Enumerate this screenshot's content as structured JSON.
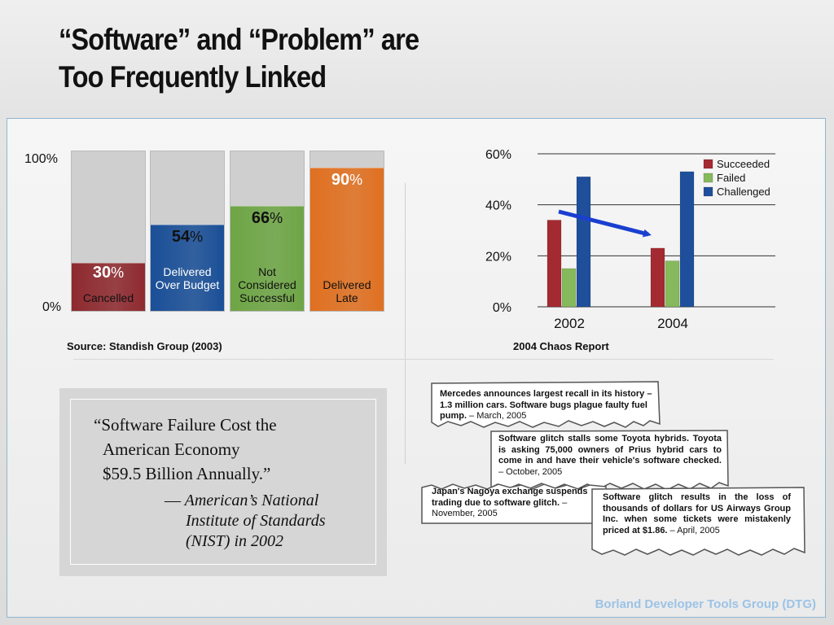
{
  "title": {
    "line1": "“Software” and “Problem” are",
    "line2": "Too Frequently Linked"
  },
  "standish": {
    "axis_top": "100%",
    "axis_bottom": "0%",
    "bars": [
      {
        "pct_num": "30",
        "pct_sign": "%",
        "label": "Cancelled",
        "value": 30,
        "color": "#8e2a2f"
      },
      {
        "pct_num": "54",
        "pct_sign": "%",
        "label": "Delivered Over Budget",
        "value": 54,
        "color": "#1a4f97"
      },
      {
        "pct_num": "66",
        "pct_sign": "%",
        "label": "Not Considered Successful",
        "value": 66,
        "color": "#6ea545"
      },
      {
        "pct_num": "90",
        "pct_sign": "%",
        "label": "Delivered Late",
        "value": 90,
        "color": "#e07020"
      }
    ],
    "source": "Source: Standish Group (2003)"
  },
  "chart_data": {
    "type": "bar",
    "categories": [
      "2002",
      "2004"
    ],
    "series": [
      {
        "name": "Succeeded",
        "values": [
          34,
          23
        ],
        "color": "#a42a31"
      },
      {
        "name": "Failed",
        "values": [
          15,
          18
        ],
        "color": "#86b95c"
      },
      {
        "name": "Challenged",
        "values": [
          51,
          53
        ],
        "color": "#1f4f9b"
      }
    ],
    "yticks": [
      "0%",
      "20%",
      "40%",
      "60%"
    ],
    "ylim": [
      0,
      60
    ],
    "grid": true,
    "legend": "top-right",
    "caption": "2004 Chaos Report"
  },
  "quote": {
    "line1": "“Software Failure Cost the",
    "line2": "American Economy",
    "line3": "$59.5 Billion Annually.”",
    "attr_dash": "—",
    "attr1": "American’s National",
    "attr2": "Institute of Standards",
    "attr3": "(NIST) in 2002"
  },
  "clippings": [
    {
      "bold": "Mercedes announces largest recall in its history – 1.3 million cars. Software bugs plague faulty fuel pump.",
      "date": " – March, 2005"
    },
    {
      "bold": "Software glitch stalls some Toyota hybrids. Toyota is asking 75,000 owners of Prius hybrid cars to come in and have their vehicle's software checked.",
      "date": " – October, 2005"
    },
    {
      "bold": "Japan's Nagoya exchange suspends trading due to software glitch.",
      "date": " – November, 2005"
    },
    {
      "bold": "Software glitch results in the loss of thousands of dollars for US Airways Group Inc. when some tickets were mistakenly priced at $1.86.",
      "date": "  –  April, 2005"
    }
  ],
  "footer": "Borland Developer Tools Group (DTG)",
  "colors": {
    "frame": "#8fb5d3",
    "footer": "#9cc3e6",
    "arrow": "#1a3fd0"
  }
}
